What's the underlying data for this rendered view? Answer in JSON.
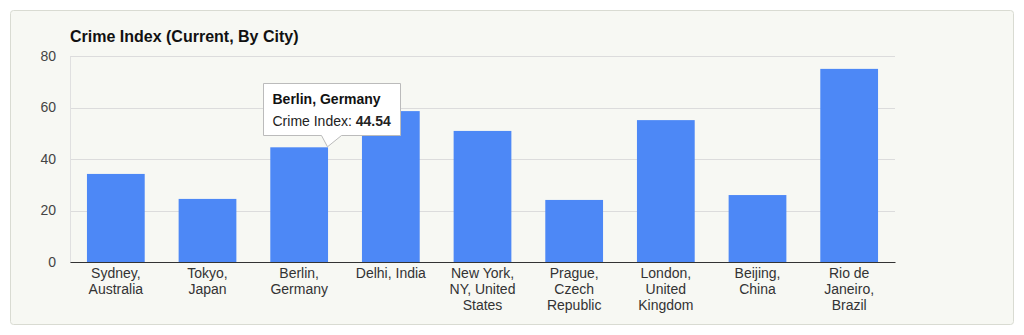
{
  "chart_data": {
    "type": "bar",
    "title": "Crime Index (Current, By City)",
    "categories": [
      "Sydney, Australia",
      "Tokyo, Japan",
      "Berlin, Germany",
      "Delhi, India",
      "New York, NY, United States",
      "Prague, Czech Republic",
      "London, United Kingdom",
      "Beijing, China",
      "Rio de Janeiro, Brazil"
    ],
    "values": [
      34.2,
      24.5,
      44.54,
      58.6,
      50.9,
      24.1,
      55.1,
      26.0,
      75.0
    ],
    "color": "#4d88f6",
    "ylim": [
      0,
      80
    ],
    "yticks": [
      0,
      20,
      40,
      60,
      80
    ],
    "grid": true,
    "annotations": [
      {
        "category": "Berlin, Germany",
        "text": "Crime Index: "
      }
    ]
  }
}
